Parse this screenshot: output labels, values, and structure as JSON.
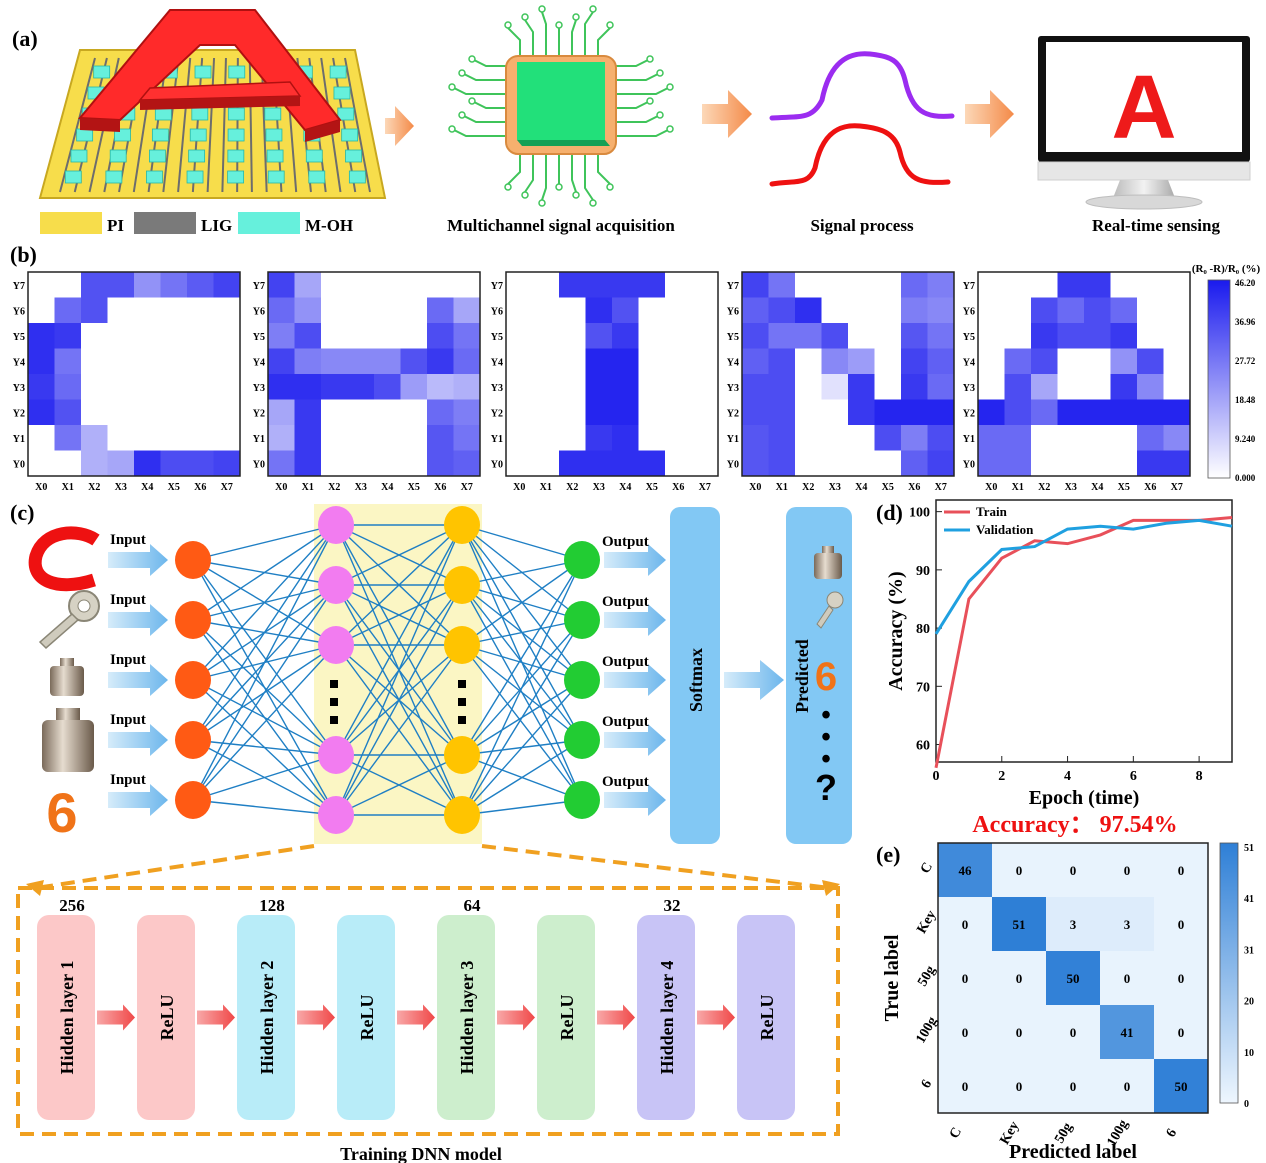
{
  "panel_a": {
    "label": "(a)",
    "big_letter": "A",
    "legend": [
      {
        "name": "PI",
        "color": "#f7dd4b"
      },
      {
        "name": "LIG",
        "color": "#7a7a7a"
      },
      {
        "name": "M-OH",
        "color": "#66f0dc"
      }
    ],
    "captions": {
      "acquisition": "Multichannel signal acquisition",
      "process": "Signal process",
      "sensing": "Real-time sensing"
    },
    "monitor_letter": "A",
    "signal_colors": [
      "#9b2cf0",
      "#ee1111"
    ]
  },
  "panel_b": {
    "label": "(b)",
    "colorbar_title": "(R₀ -R)/R₀ (%)",
    "colorbar_ticks": [
      "46.20",
      "36.96",
      "27.72",
      "18.48",
      "9.240",
      "0.000"
    ],
    "vmax": 46.2,
    "x_labels": [
      "X0",
      "X1",
      "X2",
      "X3",
      "X4",
      "X5",
      "X6",
      "X7"
    ],
    "y_labels": [
      "Y7",
      "Y6",
      "Y5",
      "Y4",
      "Y3",
      "Y2",
      "Y1",
      "Y0"
    ],
    "heatmaps": [
      {
        "letter": "C",
        "grid": [
          [
            0,
            0,
            35,
            35,
            22,
            28,
            33,
            38
          ],
          [
            0,
            30,
            35,
            0,
            0,
            0,
            0,
            0
          ],
          [
            42,
            40,
            0,
            0,
            0,
            0,
            0,
            0
          ],
          [
            42,
            28,
            0,
            0,
            0,
            0,
            0,
            0
          ],
          [
            40,
            30,
            0,
            0,
            0,
            0,
            0,
            0
          ],
          [
            42,
            35,
            0,
            0,
            0,
            0,
            0,
            0
          ],
          [
            0,
            28,
            16,
            0,
            0,
            0,
            0,
            0
          ],
          [
            0,
            0,
            16,
            18,
            42,
            36,
            36,
            38
          ]
        ]
      },
      {
        "letter": "H",
        "grid": [
          [
            38,
            18,
            0,
            0,
            0,
            0,
            0,
            0
          ],
          [
            30,
            22,
            0,
            0,
            0,
            0,
            30,
            18
          ],
          [
            26,
            36,
            0,
            0,
            0,
            0,
            36,
            28
          ],
          [
            38,
            26,
            24,
            24,
            24,
            35,
            40,
            30
          ],
          [
            42,
            42,
            40,
            40,
            36,
            20,
            14,
            16
          ],
          [
            18,
            40,
            0,
            0,
            0,
            0,
            30,
            26
          ],
          [
            16,
            40,
            0,
            0,
            0,
            0,
            34,
            28
          ],
          [
            28,
            40,
            0,
            0,
            0,
            0,
            34,
            32
          ]
        ]
      },
      {
        "letter": "I",
        "grid": [
          [
            0,
            0,
            40,
            40,
            40,
            40,
            0,
            0
          ],
          [
            0,
            0,
            0,
            42,
            35,
            0,
            0,
            0
          ],
          [
            0,
            0,
            0,
            35,
            40,
            0,
            0,
            0
          ],
          [
            0,
            0,
            0,
            44,
            44,
            0,
            0,
            0
          ],
          [
            0,
            0,
            0,
            44,
            44,
            0,
            0,
            0
          ],
          [
            0,
            0,
            0,
            44,
            44,
            0,
            0,
            0
          ],
          [
            0,
            0,
            0,
            40,
            42,
            0,
            0,
            0
          ],
          [
            0,
            0,
            42,
            42,
            42,
            42,
            0,
            0
          ]
        ]
      },
      {
        "letter": "N",
        "grid": [
          [
            38,
            28,
            0,
            0,
            0,
            0,
            30,
            26
          ],
          [
            32,
            36,
            42,
            0,
            0,
            0,
            26,
            24
          ],
          [
            36,
            28,
            28,
            36,
            0,
            0,
            34,
            28
          ],
          [
            32,
            36,
            0,
            24,
            20,
            0,
            38,
            32
          ],
          [
            36,
            36,
            0,
            6,
            40,
            0,
            40,
            30
          ],
          [
            36,
            36,
            0,
            0,
            40,
            44,
            44,
            44
          ],
          [
            34,
            36,
            0,
            0,
            0,
            36,
            26,
            36
          ],
          [
            34,
            36,
            0,
            0,
            0,
            0,
            32,
            38
          ]
        ]
      },
      {
        "letter": "A",
        "grid": [
          [
            0,
            0,
            0,
            40,
            40,
            0,
            0,
            0
          ],
          [
            0,
            0,
            36,
            30,
            36,
            30,
            0,
            0
          ],
          [
            0,
            0,
            40,
            36,
            36,
            40,
            0,
            0
          ],
          [
            0,
            30,
            36,
            0,
            0,
            22,
            36,
            0
          ],
          [
            0,
            36,
            18,
            0,
            0,
            40,
            24,
            0
          ],
          [
            44,
            36,
            30,
            44,
            44,
            44,
            44,
            44
          ],
          [
            30,
            30,
            0,
            0,
            0,
            0,
            30,
            24
          ],
          [
            30,
            30,
            0,
            0,
            0,
            0,
            40,
            40
          ]
        ]
      }
    ]
  },
  "panel_c": {
    "label": "(c)",
    "input_label": "Input",
    "output_label": "Output",
    "softmax_label": "Softmax",
    "predicted_label": "Predicted",
    "predicted_items": [
      "6",
      "•",
      "•",
      "•",
      "?"
    ],
    "input_digit": "6",
    "colors": {
      "input": "#ff5a14",
      "hidden1": "#f27cf0",
      "hidden2": "#ffc400",
      "output": "#22cc33",
      "edge": "#1f7fc4",
      "box": "#82c8f4",
      "dashed": "#f0a020"
    },
    "dnn_title": "Training DNN model",
    "layers": [
      {
        "label": "Hidden layer 1",
        "count": "256",
        "color": "#fcc8c8"
      },
      {
        "label": "ReLU",
        "count": "",
        "color": "#fcc8c8"
      },
      {
        "label": "Hidden layer 2",
        "count": "128",
        "color": "#b8ecf8"
      },
      {
        "label": "ReLU",
        "count": "",
        "color": "#b8ecf8"
      },
      {
        "label": "Hidden layer 3",
        "count": "64",
        "color": "#cdeecd"
      },
      {
        "label": "ReLU",
        "count": "",
        "color": "#cdeecd"
      },
      {
        "label": "Hidden layer 4",
        "count": "32",
        "color": "#c8c4f6"
      },
      {
        "label": "ReLU",
        "count": "",
        "color": "#c8c4f6"
      }
    ]
  },
  "panel_d": {
    "label": "(d)",
    "title_accuracy": "Accuracy： 97.54%",
    "chart_data": {
      "type": "line",
      "xlabel": "Epoch (time)",
      "ylabel": "Accuracy (%)",
      "xlim": [
        0,
        9
      ],
      "ylim": [
        57,
        102
      ],
      "x_ticks": [
        0,
        2,
        4,
        6,
        8
      ],
      "y_ticks": [
        60,
        70,
        80,
        90,
        100
      ],
      "legend": "top-left",
      "series": [
        {
          "name": "Train",
          "color": "#e8505a",
          "x": [
            0,
            1,
            2,
            3,
            4,
            5,
            6,
            7,
            8,
            9
          ],
          "y": [
            56,
            85,
            92,
            95,
            94.5,
            96,
            98.5,
            98.5,
            98.5,
            99
          ]
        },
        {
          "name": "Validation",
          "color": "#1fa0e0",
          "x": [
            0,
            1,
            2,
            3,
            4,
            5,
            6,
            7,
            8,
            9
          ],
          "y": [
            79,
            88,
            93.5,
            94,
            97,
            97.5,
            97,
            98,
            98.5,
            97.5
          ]
        }
      ]
    }
  },
  "panel_e": {
    "label": "(e)",
    "chart_data": {
      "type": "heatmap",
      "xlabel": "Predicted label",
      "ylabel": "True label",
      "labels": [
        "C",
        "Key",
        "50g",
        "100g",
        "6"
      ],
      "matrix": [
        [
          46,
          0,
          0,
          0,
          0
        ],
        [
          0,
          51,
          3,
          3,
          0
        ],
        [
          0,
          0,
          50,
          0,
          0
        ],
        [
          0,
          0,
          0,
          41,
          0
        ],
        [
          0,
          0,
          0,
          0,
          50
        ]
      ],
      "vmax": 51,
      "colorbar_ticks": [
        "51",
        "41",
        "31",
        "20",
        "10",
        "0"
      ]
    }
  }
}
